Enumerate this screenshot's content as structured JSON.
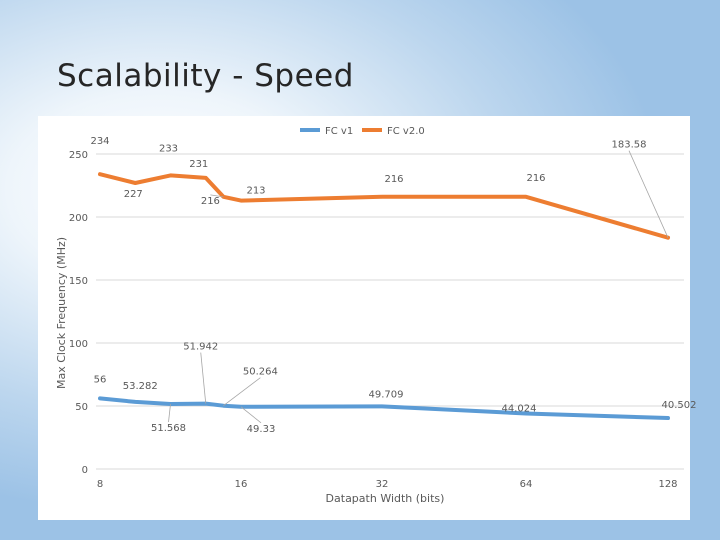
{
  "slide": {
    "title": "Scalability - Speed"
  },
  "chart_data": {
    "type": "line",
    "title": "",
    "xlabel": "Datapath Width (bits)",
    "ylabel": "Max Clock Frequency (MHz)",
    "ylim": [
      0,
      250
    ],
    "yticks": [
      "0",
      "50",
      "100",
      "150",
      "200",
      "250"
    ],
    "grid": true,
    "legend": "top",
    "x_ticks": [
      {
        "value": 8,
        "label": "8"
      },
      {
        "value": 16,
        "label": "16"
      },
      {
        "value": 32,
        "label": "32"
      },
      {
        "value": 64,
        "label": "64"
      },
      {
        "value": 128,
        "label": "128"
      }
    ],
    "series": [
      {
        "name": "FC v1",
        "color": "#5b9bd5",
        "points": [
          {
            "x": 8,
            "y": 56
          },
          {
            "x": 10,
            "y": 53.282
          },
          {
            "x": 12,
            "y": 51.568
          },
          {
            "x": 14,
            "y": 51.942
          },
          {
            "x": 15,
            "y": 50.264
          },
          {
            "x": 16,
            "y": 49.33
          },
          {
            "x": 32,
            "y": 49.709
          },
          {
            "x": 64,
            "y": 44.024
          },
          {
            "x": 128,
            "y": 40.502
          }
        ],
        "labels": [
          "56",
          "53.282",
          "51.568",
          "51.942",
          "50.264",
          "49.33",
          "49.709",
          "44.024",
          "40.502"
        ]
      },
      {
        "name": "FC v2.0",
        "color": "#ed7d31",
        "points": [
          {
            "x": 8,
            "y": 234
          },
          {
            "x": 10,
            "y": 227
          },
          {
            "x": 12,
            "y": 233
          },
          {
            "x": 14,
            "y": 231
          },
          {
            "x": 15,
            "y": 216
          },
          {
            "x": 16,
            "y": 213
          },
          {
            "x": 32,
            "y": 216
          },
          {
            "x": 64,
            "y": 216
          },
          {
            "x": 128,
            "y": 183.58
          }
        ],
        "labels": [
          "234",
          "227",
          "233",
          "231",
          "216",
          "213",
          "216",
          "216",
          "183.58"
        ]
      }
    ]
  }
}
